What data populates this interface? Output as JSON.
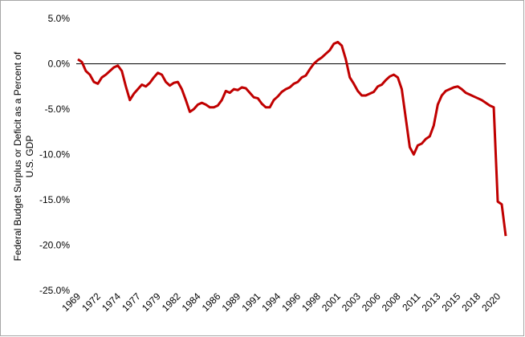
{
  "chart_data": {
    "type": "line",
    "y_label": [
      "Federal Budget Surplus or Deficit as a Percent of",
      "U.S. GDP"
    ],
    "categories": [
      "1969",
      null,
      null,
      null,
      null,
      "1972",
      null,
      null,
      null,
      null,
      "1974",
      null,
      null,
      null,
      null,
      "1977",
      null,
      null,
      null,
      null,
      "1979",
      null,
      null,
      null,
      null,
      "1982",
      null,
      null,
      null,
      null,
      "1984",
      null,
      null,
      null,
      null,
      "1986",
      null,
      null,
      null,
      null,
      "1989",
      null,
      null,
      null,
      null,
      "1991",
      null,
      null,
      null,
      null,
      "1994",
      null,
      null,
      null,
      null,
      "1996",
      null,
      null,
      null,
      null,
      "1998",
      null,
      null,
      null,
      null,
      "2001",
      null,
      null,
      null,
      null,
      "2003",
      null,
      null,
      null,
      null,
      "2006",
      null,
      null,
      null,
      null,
      "2008",
      null,
      null,
      null,
      null,
      "2011",
      null,
      null,
      null,
      null,
      "2013",
      null,
      null,
      null,
      null,
      "2015",
      null,
      null,
      null,
      null,
      "2018",
      null,
      null,
      null,
      null,
      "2020",
      null,
      null
    ],
    "values": [
      0.5,
      0.2,
      -0.8,
      -1.2,
      -2.0,
      -2.2,
      -1.5,
      -1.2,
      -0.8,
      -0.4,
      -0.2,
      -0.8,
      -2.5,
      -4.0,
      -3.3,
      -2.8,
      -2.3,
      -2.5,
      -2.1,
      -1.5,
      -1.0,
      -1.2,
      -2.0,
      -2.4,
      -2.1,
      -2.0,
      -2.8,
      -4.0,
      -5.3,
      -5.0,
      -4.5,
      -4.3,
      -4.5,
      -4.8,
      -4.8,
      -4.6,
      -4.0,
      -3.0,
      -3.2,
      -2.8,
      -2.9,
      -2.6,
      -2.7,
      -3.2,
      -3.7,
      -3.8,
      -4.4,
      -4.8,
      -4.8,
      -4.0,
      -3.6,
      -3.1,
      -2.8,
      -2.6,
      -2.2,
      -2.0,
      -1.5,
      -1.3,
      -0.6,
      0.0,
      0.4,
      0.7,
      1.1,
      1.5,
      2.2,
      2.4,
      2.0,
      0.5,
      -1.5,
      -2.2,
      -3.0,
      -3.5,
      -3.5,
      -3.3,
      -3.1,
      -2.5,
      -2.3,
      -1.8,
      -1.4,
      -1.2,
      -1.5,
      -2.8,
      -6.0,
      -9.2,
      -10.0,
      -9.0,
      -8.8,
      -8.3,
      -8.0,
      -6.8,
      -4.5,
      -3.5,
      -3.0,
      -2.8,
      -2.6,
      -2.5,
      -2.8,
      -3.2,
      -3.4,
      -3.6,
      -3.8,
      -4.0,
      -4.3,
      -4.6,
      -4.8,
      -15.2,
      -15.5,
      -19.0
    ],
    "color": "#c00000",
    "ylim": [
      -25,
      5
    ],
    "yticks": [
      {
        "value": 5,
        "label": "5.0%"
      },
      {
        "value": 0,
        "label": "0.0%"
      },
      {
        "value": -5,
        "label": "-5.0%"
      },
      {
        "value": -10,
        "label": "-10.0%"
      },
      {
        "value": -15,
        "label": "-15.0%"
      },
      {
        "value": -20,
        "label": "-20.0%"
      },
      {
        "value": -25,
        "label": "-25.0%"
      }
    ]
  }
}
